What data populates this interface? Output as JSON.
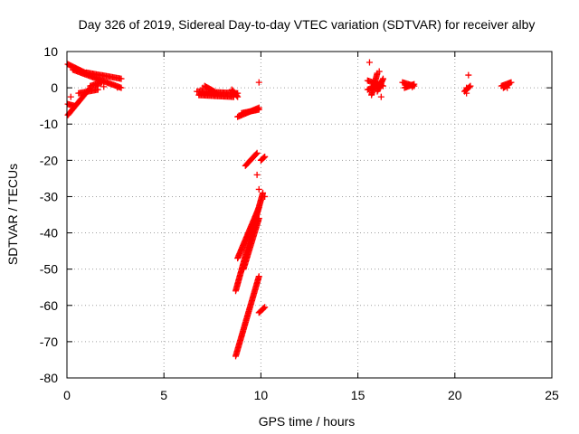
{
  "chart_data": {
    "type": "scatter",
    "title": "Day 326 of 2019, Sidereal Day-to-day VTEC variation (SDTVAR) for receiver alby",
    "xlabel": "GPS time / hours",
    "ylabel": "SDTVAR / TECUs",
    "xlim": [
      0,
      25
    ],
    "ylim": [
      -80,
      10
    ],
    "xticks": [
      0,
      5,
      10,
      15,
      20,
      25
    ],
    "yticks": [
      10,
      0,
      -10,
      -20,
      -30,
      -40,
      -50,
      -60,
      -70,
      -80
    ],
    "grid": true,
    "marker": "+",
    "color": "#ff0000",
    "series": [
      {
        "name": "alby",
        "segments": [
          {
            "x0": 0.05,
            "y0": 6.5,
            "x1": 1.0,
            "y1": 4.0
          },
          {
            "x0": 1.0,
            "y0": 4.2,
            "x1": 2.8,
            "y1": 2.5
          },
          {
            "x0": 0.3,
            "y0": 5.0,
            "x1": 2.8,
            "y1": 0.0
          },
          {
            "x0": 0.05,
            "y0": -7.5,
            "x1": 1.2,
            "y1": 0.0
          },
          {
            "x0": 1.2,
            "y0": 0.5,
            "x1": 1.8,
            "y1": 1.5
          },
          {
            "x0": 0.05,
            "y0": -4.5,
            "x1": 0.4,
            "y1": -5.0
          },
          {
            "x0": 0.6,
            "y0": -1.5,
            "x1": 1.6,
            "y1": -0.5
          },
          {
            "x0": 6.7,
            "y0": -1.0,
            "x1": 8.8,
            "y1": -1.5
          },
          {
            "x0": 6.8,
            "y0": -2.0,
            "x1": 8.6,
            "y1": -2.5
          },
          {
            "x0": 7.1,
            "y0": 0.5,
            "x1": 7.6,
            "y1": -1.0
          },
          {
            "x0": 8.5,
            "y0": -0.5,
            "x1": 8.8,
            "y1": -2.5
          },
          {
            "x0": 8.8,
            "y0": -8.0,
            "x1": 9.9,
            "y1": -5.5
          },
          {
            "x0": 9.0,
            "y0": -7.0,
            "x1": 9.9,
            "y1": -6.0
          },
          {
            "x0": 9.2,
            "y0": -21.5,
            "x1": 9.8,
            "y1": -18.0
          },
          {
            "x0": 10.0,
            "y0": -20.0,
            "x1": 10.2,
            "y1": -19.0
          },
          {
            "x0": 8.7,
            "y0": -56.0,
            "x1": 10.1,
            "y1": -29.0
          },
          {
            "x0": 8.8,
            "y0": -47.0,
            "x1": 9.9,
            "y1": -33.0
          },
          {
            "x0": 9.1,
            "y0": -50.0,
            "x1": 9.9,
            "y1": -36.0
          },
          {
            "x0": 8.7,
            "y0": -74.0,
            "x1": 9.9,
            "y1": -52.0
          },
          {
            "x0": 9.9,
            "y0": -62.0,
            "x1": 10.2,
            "y1": -60.5
          },
          {
            "x0": 15.5,
            "y0": 2.0,
            "x1": 16.3,
            "y1": 0.5
          },
          {
            "x0": 15.5,
            "y0": -0.5,
            "x1": 16.2,
            "y1": 1.0
          },
          {
            "x0": 15.7,
            "y0": -2.0,
            "x1": 16.0,
            "y1": 4.0
          },
          {
            "x0": 16.0,
            "y0": -1.0,
            "x1": 16.3,
            "y1": 2.5
          },
          {
            "x0": 17.3,
            "y0": 1.5,
            "x1": 17.9,
            "y1": 0.5
          },
          {
            "x0": 17.4,
            "y0": 0.0,
            "x1": 17.9,
            "y1": 1.0
          },
          {
            "x0": 20.5,
            "y0": -1.0,
            "x1": 20.8,
            "y1": 0.5
          },
          {
            "x0": 22.4,
            "y0": 0.5,
            "x1": 22.9,
            "y1": 1.5
          },
          {
            "x0": 22.5,
            "y0": 0.0,
            "x1": 22.8,
            "y1": 1.0
          }
        ],
        "points": [
          {
            "x": 9.9,
            "y": 1.5
          },
          {
            "x": 9.8,
            "y": -24.0
          },
          {
            "x": 9.9,
            "y": -28.0
          },
          {
            "x": 15.6,
            "y": 7.0
          },
          {
            "x": 16.1,
            "y": 4.5
          },
          {
            "x": 16.2,
            "y": -2.5
          },
          {
            "x": 20.7,
            "y": 3.5
          },
          {
            "x": 20.6,
            "y": 0.0
          },
          {
            "x": 20.6,
            "y": -1.5
          },
          {
            "x": 10.1,
            "y": -61.0
          },
          {
            "x": 10.2,
            "y": -30.0
          },
          {
            "x": 1.9,
            "y": 0.3
          },
          {
            "x": 2.6,
            "y": 0.1
          },
          {
            "x": 1.6,
            "y": 0.5
          },
          {
            "x": 0.2,
            "y": -2.5
          },
          {
            "x": 7.0,
            "y": 0.0
          },
          {
            "x": 17.8,
            "y": 0.2
          },
          {
            "x": 22.7,
            "y": 0.0
          }
        ]
      }
    ]
  }
}
